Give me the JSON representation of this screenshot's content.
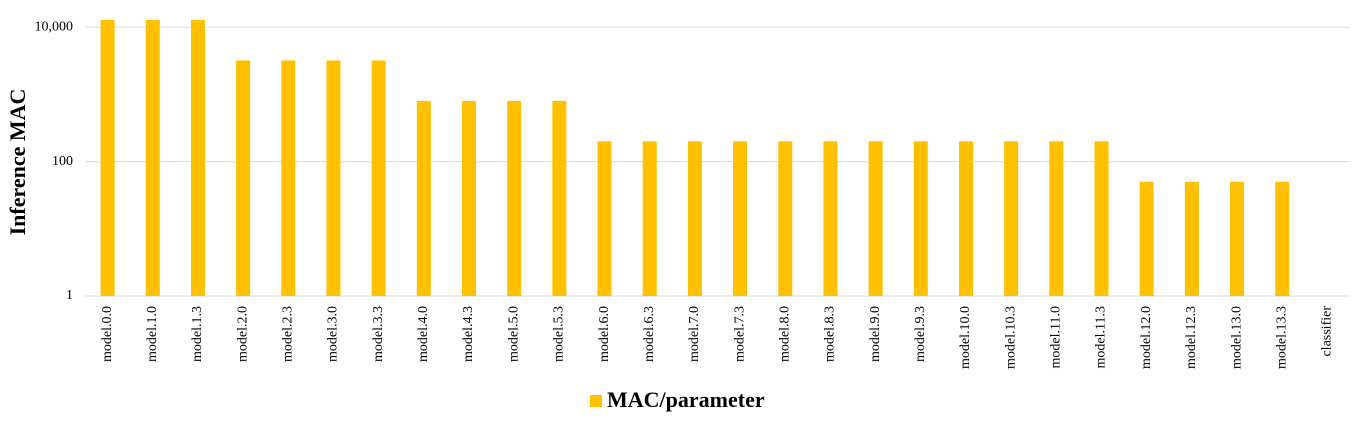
{
  "chart_data": {
    "type": "bar",
    "y_label": "Inference MAC",
    "log_scale": true,
    "grid": true,
    "categories": [
      "model.0.0",
      "model.1.0",
      "model.1.3",
      "model.2.0",
      "model.2.3",
      "model.3.0",
      "model.3.3",
      "model.4.0",
      "model.4.3",
      "model.5.0",
      "model.5.3",
      "model.6.0",
      "model.6.3",
      "model.7.0",
      "model.7.3",
      "model.8.0",
      "model.8.3",
      "model.9.0",
      "model.9.3",
      "model.10.0",
      "model.10.3",
      "model.11.0",
      "model.11.3",
      "model.12.0",
      "model.12.3",
      "model.13.0",
      "model.13.3",
      "classifier"
    ],
    "series": [
      {
        "name": "MAC/parameter",
        "color": "#ffc000",
        "values": [
          12800,
          12800,
          12800,
          3200,
          3200,
          3200,
          3200,
          800,
          800,
          800,
          800,
          200,
          200,
          200,
          200,
          200,
          200,
          200,
          200,
          200,
          200,
          200,
          200,
          50,
          50,
          50,
          50,
          1
        ]
      }
    ],
    "ylim": [
      1,
      12800
    ],
    "yticks": [
      1,
      100,
      {
        "value": 10000,
        "label": "10,000"
      }
    ],
    "legend": "bottom"
  }
}
